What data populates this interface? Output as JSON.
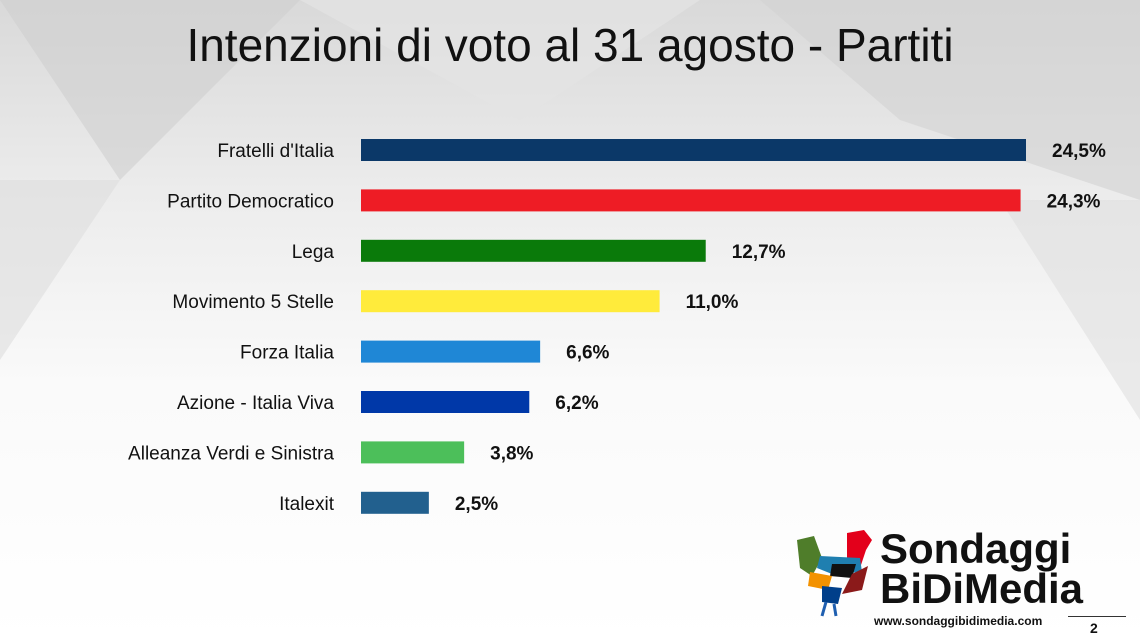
{
  "chart_data": {
    "type": "bar",
    "orientation": "horizontal",
    "title": "Intenzioni di voto al 31 agosto - Partiti",
    "categories": [
      "Fratelli d'Italia",
      "Partito Democratico",
      "Lega",
      "Movimento 5 Stelle",
      "Forza Italia",
      "Azione - Italia Viva",
      "Alleanza Verdi e Sinistra",
      "Italexit"
    ],
    "values": [
      24.5,
      24.3,
      12.7,
      11.0,
      6.6,
      6.2,
      3.8,
      2.5
    ],
    "data_labels": [
      "24,5%",
      "24,3%",
      "12,7%",
      "11,0%",
      "6,6%",
      "6,2%",
      "3,8%",
      "2,5%"
    ],
    "colors": [
      "#0b3868",
      "#ee1c25",
      "#0a7a0a",
      "#ffeb3b",
      "#1f87d6",
      "#0038a8",
      "#4cbf5a",
      "#22608e"
    ],
    "xlim": [
      0,
      24.5
    ],
    "grid": false,
    "legend": "none"
  },
  "logo": {
    "line1": "Sondaggi",
    "line2": "BiDiMedia",
    "url": "www.sondaggibidimedia.com"
  },
  "page_number": "2"
}
